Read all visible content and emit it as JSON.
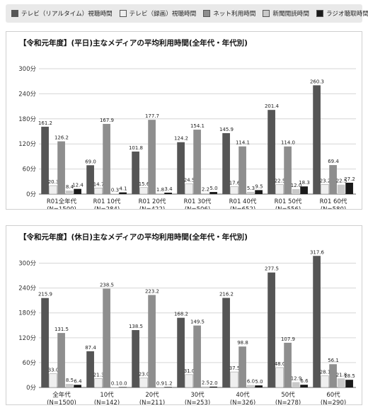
{
  "legend": [
    {
      "label": "テレビ（リアルタイム）視聴時間",
      "color": "#555555"
    },
    {
      "label": "テレビ（録画）視聴時間",
      "color": "#efefef"
    },
    {
      "label": "ネット利用時間",
      "color": "#8e8e8e"
    },
    {
      "label": "新聞閲読時間",
      "color": "#c9c9c9"
    },
    {
      "label": "ラジオ聴取時間",
      "color": "#1a1a1a"
    }
  ],
  "chart_data": [
    {
      "type": "bar",
      "title": "【令和元年度】(平日)主なメディアの平均利用時間(全年代・年代別)",
      "categories": [
        "R01全年代\n(N=1500)",
        "R01 10代\n(N=284)",
        "R01 20代\n(N=422)",
        "R01 30代\n(N=506)",
        "R01 40代\n(N=652)",
        "R01 50代\n(N=556)",
        "R01 60代\n(N=580)"
      ],
      "ylim": [
        0,
        300
      ],
      "yticks": [
        "0分",
        "60分",
        "120分",
        "180分",
        "240分",
        "300分"
      ],
      "series": [
        {
          "name": "テレビ（リアルタイム）視聴時間",
          "values": [
            161.2,
            69.0,
            101.8,
            124.2,
            145.9,
            201.4,
            260.3
          ]
        },
        {
          "name": "テレビ（録画）視聴時間",
          "values": [
            20.3,
            14.7,
            15.6,
            24.5,
            17.6,
            22.5,
            23.2
          ]
        },
        {
          "name": "ネット利用時間",
          "values": [
            126.2,
            167.9,
            177.7,
            154.1,
            114.1,
            114.0,
            69.4
          ]
        },
        {
          "name": "新聞閲読時間",
          "values": [
            8.4,
            0.3,
            1.8,
            2.2,
            5.3,
            12.0,
            22.5
          ]
        },
        {
          "name": "ラジオ聴取時間",
          "values": [
            12.4,
            4.1,
            3.4,
            5.0,
            9.5,
            18.3,
            27.2
          ]
        }
      ]
    },
    {
      "type": "bar",
      "title": "【令和元年度】(休日)主なメディアの平均利用時間(全年代・年代別)",
      "categories": [
        "全年代\n(N=1500)",
        "10代\n(N=142)",
        "20代\n(N=211)",
        "30代\n(N=253)",
        "40代\n(N=326)",
        "50代\n(N=278)",
        "60代\n(N=290)"
      ],
      "ylim": [
        0,
        330
      ],
      "yticks": [
        "0分",
        "60分",
        "120分",
        "180分",
        "240分",
        "300分"
      ],
      "series": [
        {
          "name": "テレビ（リアルタイム）視聴時間",
          "values": [
            215.9,
            87.4,
            138.5,
            168.2,
            216.2,
            277.5,
            317.6
          ]
        },
        {
          "name": "テレビ（録画）視聴時間",
          "values": [
            33.0,
            21.3,
            23.0,
            31.0,
            37.5,
            48.0,
            28.1
          ]
        },
        {
          "name": "ネット利用時間",
          "values": [
            131.5,
            238.5,
            223.2,
            149.5,
            98.8,
            107.9,
            56.1
          ]
        },
        {
          "name": "新聞閲読時間",
          "values": [
            8.5,
            0.1,
            0.9,
            2.5,
            6.0,
            12.9,
            21.8
          ]
        },
        {
          "name": "ラジオ聴取時間",
          "values": [
            6.4,
            0.0,
            1.2,
            2.0,
            5.0,
            6.6,
            18.5
          ]
        }
      ]
    }
  ]
}
